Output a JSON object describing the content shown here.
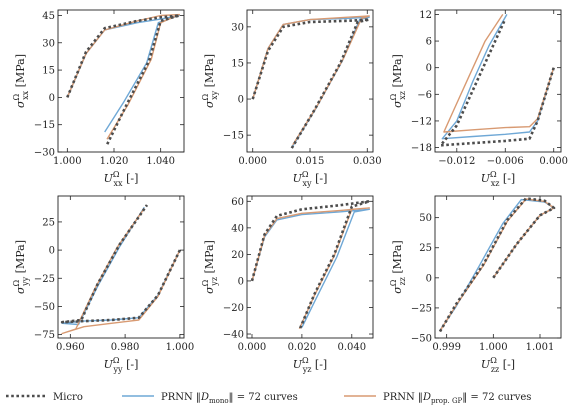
{
  "colors": {
    "micro": "#4d4d4d",
    "prnn_mono": "#6fa8d6",
    "prnn_prop": "#d89a72"
  },
  "legend": {
    "micro": "Micro",
    "prnn_mono": "PRNN ||D_mono|| = 72 curves",
    "prnn_prop": "PRNN ||D_prop. GP|| = 72 curves"
  },
  "chart_data": [
    {
      "type": "line",
      "xlabel": "U_xx^Ω [-]",
      "ylabel": "σ_xx^Ω [MPa]",
      "xlim": [
        0.996,
        1.05
      ],
      "ylim": [
        -30,
        48
      ],
      "xticks": [
        1.0,
        1.02,
        1.04
      ],
      "xtick_labels": [
        "1.000",
        "1.020",
        "1.040"
      ],
      "yticks": [
        -30,
        -15,
        0,
        15,
        30,
        45
      ],
      "ytick_labels": [
        "−30",
        "−15",
        "0",
        "15",
        "30",
        "45"
      ],
      "series": [
        {
          "key": "micro",
          "x": [
            1.0,
            1.008,
            1.016,
            1.03,
            1.04,
            1.048,
            1.04,
            1.035,
            1.025,
            1.017
          ],
          "y": [
            0,
            25,
            38,
            42,
            44,
            45,
            42,
            20,
            -5,
            -26
          ]
        },
        {
          "key": "prnn_mono",
          "x": [
            1.0,
            1.008,
            1.016,
            1.03,
            1.04,
            1.048,
            1.039,
            1.034,
            1.024,
            1.016
          ],
          "y": [
            0,
            24,
            37,
            41,
            43,
            45,
            41,
            19,
            -3,
            -19
          ]
        },
        {
          "key": "prnn_prop",
          "x": [
            1.0,
            1.008,
            1.016,
            1.03,
            1.04,
            1.048,
            1.04,
            1.036,
            1.026,
            1.017
          ],
          "y": [
            0,
            24,
            37,
            42,
            45,
            45.5,
            41,
            21,
            -4,
            -23
          ]
        }
      ]
    },
    {
      "type": "line",
      "xlabel": "U_xy^Ω [-]",
      "ylabel": "σ_xy^Ω [MPa]",
      "xlim": [
        -0.0015,
        0.0315
      ],
      "ylim": [
        -22,
        37
      ],
      "xticks": [
        0.0,
        0.015,
        0.03
      ],
      "xtick_labels": [
        "0.000",
        "0.015",
        "0.030"
      ],
      "yticks": [
        -15,
        0,
        15,
        30
      ],
      "ytick_labels": [
        "−15",
        "0",
        "15",
        "30"
      ],
      "series": [
        {
          "key": "micro",
          "x": [
            0.0,
            0.004,
            0.008,
            0.015,
            0.025,
            0.0305,
            0.0275,
            0.023,
            0.016,
            0.01
          ],
          "y": [
            0,
            20,
            30,
            32,
            32.5,
            33,
            32,
            15,
            -5,
            -21
          ]
        },
        {
          "key": "prnn_mono",
          "x": [
            0.0,
            0.004,
            0.008,
            0.015,
            0.025,
            0.0305,
            0.028,
            0.0235,
            0.0165,
            0.0103
          ],
          "y": [
            0,
            21,
            31,
            33,
            33.5,
            34,
            33,
            16,
            -4,
            -20
          ]
        },
        {
          "key": "prnn_prop",
          "x": [
            0.0,
            0.004,
            0.008,
            0.015,
            0.025,
            0.0305,
            0.0285,
            0.0238,
            0.0168,
            0.0105
          ],
          "y": [
            0,
            21,
            31,
            33,
            34,
            34.5,
            33.5,
            17,
            -3,
            -19
          ]
        }
      ]
    },
    {
      "type": "line",
      "xlabel": "U_xz^Ω [-]",
      "ylabel": "σ_xz^Ω [MPa]",
      "xlim": [
        -0.0147,
        0.0009
      ],
      "ylim": [
        -19,
        13
      ],
      "xticks": [
        -0.012,
        -0.006,
        0.0
      ],
      "xtick_labels": [
        "−0.012",
        "−0.006",
        "0.000"
      ],
      "yticks": [
        -18,
        -12,
        -6,
        0,
        6,
        12
      ],
      "ytick_labels": [
        "−18",
        "−12",
        "−6",
        "0",
        "6",
        "12"
      ],
      "series": [
        {
          "key": "micro",
          "x": [
            0.0,
            -0.002,
            -0.003,
            -0.006,
            -0.01,
            -0.014,
            -0.012,
            -0.01,
            -0.008,
            -0.006
          ],
          "y": [
            0,
            -12,
            -16,
            -16.5,
            -17,
            -17.5,
            -13,
            -5,
            3,
            11
          ]
        },
        {
          "key": "prnn_mono",
          "x": [
            0.0,
            -0.002,
            -0.003,
            -0.006,
            -0.01,
            -0.0138,
            -0.012,
            -0.01,
            -0.008,
            -0.0058
          ],
          "y": [
            0,
            -12,
            -14.5,
            -15,
            -15.5,
            -16,
            -12,
            -3,
            5,
            12
          ]
        },
        {
          "key": "prnn_prop",
          "x": [
            0.0,
            -0.002,
            -0.003,
            -0.006,
            -0.01,
            -0.0136,
            -0.0125,
            -0.0105,
            -0.0085,
            -0.0063
          ],
          "y": [
            0,
            -11.5,
            -13.3,
            -13.5,
            -14,
            -14.5,
            -10,
            -2,
            6,
            12
          ]
        }
      ]
    },
    {
      "type": "line",
      "xlabel": "U_yy^Ω [-]",
      "ylabel": "σ_yy^Ω [MPa]",
      "xlim": [
        0.9555,
        1.0015
      ],
      "ylim": [
        -78,
        48
      ],
      "xticks": [
        0.96,
        0.98,
        1.0
      ],
      "xtick_labels": [
        "0.960",
        "0.980",
        "1.000"
      ],
      "yticks": [
        -75,
        -50,
        -25,
        0,
        25
      ],
      "ytick_labels": [
        "−75",
        "−50",
        "−25",
        "0",
        "25"
      ],
      "series": [
        {
          "key": "micro",
          "x": [
            1.0,
            0.992,
            0.985,
            0.975,
            0.965,
            0.957,
            0.964,
            0.97,
            0.978,
            0.988
          ],
          "y": [
            0,
            -40,
            -60,
            -62,
            -63,
            -64,
            -62,
            -30,
            5,
            40
          ]
        },
        {
          "key": "prnn_mono",
          "x": [
            1.0,
            0.992,
            0.985,
            0.975,
            0.965,
            0.957,
            0.963,
            0.97,
            0.978,
            0.987
          ],
          "y": [
            0,
            -40,
            -60,
            -62,
            -63,
            -65,
            -66,
            -32,
            3,
            38
          ]
        },
        {
          "key": "prnn_prop",
          "x": [
            1.0,
            0.992,
            0.985,
            0.975,
            0.965,
            0.957,
            0.962,
            0.969,
            0.977,
            0.987
          ],
          "y": [
            0,
            -41,
            -62,
            -65,
            -68,
            -74,
            -70,
            -34,
            2,
            37
          ]
        }
      ]
    },
    {
      "type": "line",
      "xlabel": "U_yz^Ω [-]",
      "ylabel": "σ_yz^Ω [MPa]",
      "xlim": [
        -0.002,
        0.0485
      ],
      "ylim": [
        -43,
        64
      ],
      "xticks": [
        0.0,
        0.02,
        0.04
      ],
      "xtick_labels": [
        "0.000",
        "0.020",
        "0.040"
      ],
      "yticks": [
        -40,
        -20,
        0,
        20,
        40,
        60
      ],
      "ytick_labels": [
        "−40",
        "−20",
        "0",
        "20",
        "40",
        "60"
      ],
      "series": [
        {
          "key": "micro",
          "x": [
            0.0,
            0.005,
            0.01,
            0.02,
            0.035,
            0.047,
            0.04,
            0.033,
            0.025,
            0.019
          ],
          "y": [
            0,
            35,
            49,
            54,
            57,
            60,
            56,
            20,
            -10,
            -37
          ]
        },
        {
          "key": "prnn_mono",
          "x": [
            0.0,
            0.005,
            0.01,
            0.02,
            0.035,
            0.047,
            0.041,
            0.034,
            0.026,
            0.02
          ],
          "y": [
            0,
            33,
            46,
            50,
            52,
            54,
            52,
            18,
            -12,
            -35
          ]
        },
        {
          "key": "prnn_prop",
          "x": [
            0.0,
            0.005,
            0.01,
            0.02,
            0.035,
            0.047,
            0.04,
            0.033,
            0.025,
            0.019
          ],
          "y": [
            0,
            34,
            47,
            51,
            53,
            55,
            54,
            19,
            -11,
            -36
          ]
        }
      ]
    },
    {
      "type": "line",
      "xlabel": "U_zz^Ω [-]",
      "ylabel": "σ_zz^Ω [MPa]",
      "xlim": [
        0.99875,
        1.00145
      ],
      "ylim": [
        -50,
        68
      ],
      "xticks": [
        0.999,
        1.0,
        1.001
      ],
      "xtick_labels": [
        "0.999",
        "1.000",
        "1.001"
      ],
      "yticks": [
        -50,
        -25,
        0,
        25,
        50
      ],
      "ytick_labels": [
        "−50",
        "−25",
        "0",
        "25",
        "50"
      ],
      "series": [
        {
          "key": "micro",
          "x": [
            1.0,
            1.0005,
            1.001,
            1.0013,
            1.0011,
            1.0007,
            1.0003,
            0.9998,
            0.9992,
            0.99885
          ],
          "y": [
            0,
            28,
            52,
            58,
            64,
            66,
            48,
            12,
            -22,
            -45
          ]
        },
        {
          "key": "prnn_mono",
          "x": [
            1.0,
            1.0005,
            1.001,
            1.0013,
            1.0011,
            1.0006,
            1.0002,
            0.9997,
            0.9992,
            0.99885
          ],
          "y": [
            0,
            28,
            52,
            58,
            63,
            65,
            45,
            10,
            -24,
            -44
          ]
        },
        {
          "key": "prnn_prop",
          "x": [
            1.0,
            1.0005,
            1.001,
            1.0013,
            1.0011,
            1.0007,
            1.0003,
            0.9998,
            0.9992,
            0.99885
          ],
          "y": [
            0,
            28,
            52,
            58,
            63.5,
            65.5,
            47,
            11,
            -23,
            -44.5
          ]
        }
      ]
    }
  ]
}
